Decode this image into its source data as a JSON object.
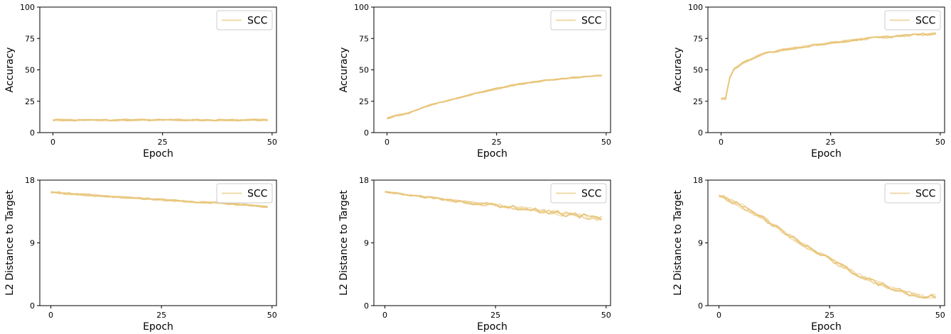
{
  "chart_data": [
    {
      "type": "line",
      "title": "",
      "xlabel": "Epoch",
      "ylabel": "Accuracy",
      "xlim": [
        -3,
        51
      ],
      "ylim": [
        0,
        100
      ],
      "xticks": [
        0,
        25,
        50
      ],
      "yticks": [
        0,
        25,
        50,
        75,
        100
      ],
      "grid": false,
      "legend": {
        "position": "top-right",
        "entries": [
          "SCC"
        ]
      },
      "series_color": "#e8c274",
      "series": [
        {
          "name": "SCC",
          "x": [
            0,
            10,
            20,
            30,
            40,
            49
          ],
          "values": [
            10,
            10,
            10,
            10,
            10,
            10
          ]
        }
      ]
    },
    {
      "type": "line",
      "title": "",
      "xlabel": "Epoch",
      "ylabel": "Accuracy",
      "xlim": [
        -3,
        51
      ],
      "ylim": [
        0,
        100
      ],
      "xticks": [
        0,
        25,
        50
      ],
      "yticks": [
        0,
        25,
        50,
        75,
        100
      ],
      "grid": false,
      "legend": {
        "position": "top-right",
        "entries": [
          "SCC"
        ]
      },
      "series_color": "#e8c274",
      "series": [
        {
          "name": "SCC",
          "x": [
            0,
            2,
            5,
            8,
            10,
            15,
            20,
            25,
            30,
            35,
            40,
            45,
            49
          ],
          "values": [
            11.5,
            13.5,
            15.5,
            19.5,
            22,
            26.5,
            31,
            35,
            38.5,
            41,
            43,
            44.5,
            45.5
          ]
        }
      ]
    },
    {
      "type": "line",
      "title": "",
      "xlabel": "Epoch",
      "ylabel": "Accuracy",
      "xlim": [
        -3,
        51
      ],
      "ylim": [
        0,
        100
      ],
      "xticks": [
        0,
        25,
        50
      ],
      "yticks": [
        0,
        25,
        50,
        75,
        100
      ],
      "grid": false,
      "legend": {
        "position": "top-right",
        "entries": [
          "SCC"
        ]
      },
      "series_color": "#e8c274",
      "series": [
        {
          "name": "SCC",
          "x": [
            0,
            1,
            2,
            3,
            4,
            5,
            7,
            10,
            15,
            20,
            25,
            30,
            35,
            40,
            45,
            49
          ],
          "values": [
            27,
            27,
            44,
            51,
            53,
            56,
            59,
            63,
            66.5,
            69,
            71.5,
            73.5,
            75.5,
            76.8,
            78,
            79
          ]
        }
      ]
    },
    {
      "type": "line",
      "title": "",
      "xlabel": "Epoch",
      "ylabel": "L2 Distance to Target",
      "xlim": [
        -2.5,
        51
      ],
      "ylim": [
        0,
        18
      ],
      "xticks": [
        0,
        25,
        50
      ],
      "yticks": [
        0,
        9,
        18
      ],
      "grid": false,
      "legend": {
        "position": "top-right",
        "entries": [
          "SCC"
        ]
      },
      "series_color": "#e8c274",
      "series": [
        {
          "name": "SCC",
          "x": [
            0,
            5,
            10,
            15,
            20,
            25,
            30,
            35,
            40,
            45,
            49
          ],
          "values": [
            16.3,
            16.0,
            15.8,
            15.6,
            15.4,
            15.2,
            15.0,
            14.8,
            14.6,
            14.4,
            14.2
          ]
        }
      ]
    },
    {
      "type": "line",
      "title": "",
      "xlabel": "Epoch",
      "ylabel": "L2 Distance to Target",
      "xlim": [
        -2.5,
        51
      ],
      "ylim": [
        0,
        18
      ],
      "xticks": [
        0,
        25,
        50
      ],
      "yticks": [
        0,
        9,
        18
      ],
      "grid": false,
      "legend": {
        "position": "top-right",
        "entries": [
          "SCC"
        ]
      },
      "series_color": "#e8c274",
      "series": [
        {
          "name": "SCC",
          "x": [
            0,
            5,
            10,
            15,
            20,
            25,
            30,
            35,
            40,
            45,
            49
          ],
          "values": [
            16.3,
            15.9,
            15.5,
            15.1,
            14.7,
            14.4,
            14.0,
            13.6,
            13.2,
            12.8,
            12.5
          ]
        }
      ]
    },
    {
      "type": "line",
      "title": "",
      "xlabel": "Epoch",
      "ylabel": "L2 Distance to Target",
      "xlim": [
        -2.5,
        51
      ],
      "ylim": [
        0,
        18
      ],
      "xticks": [
        0,
        25,
        50
      ],
      "yticks": [
        0,
        9,
        18
      ],
      "grid": false,
      "legend": {
        "position": "top-right",
        "entries": [
          "SCC"
        ]
      },
      "series_color": "#e8c274",
      "series": [
        {
          "name": "SCC",
          "x": [
            0,
            5,
            10,
            15,
            20,
            25,
            30,
            35,
            40,
            45,
            47,
            49
          ],
          "values": [
            15.8,
            14.3,
            12.5,
            10.4,
            8.4,
            6.6,
            4.9,
            3.4,
            2.4,
            1.3,
            1.3,
            1.3
          ]
        }
      ]
    }
  ]
}
